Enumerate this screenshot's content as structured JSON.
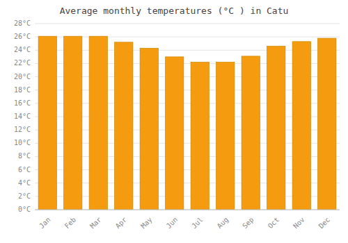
{
  "chart_data": {
    "type": "bar",
    "title": "Average monthly temperatures (°C ) in Catu",
    "categories": [
      "Jan",
      "Feb",
      "Mar",
      "Apr",
      "May",
      "Jun",
      "Jul",
      "Aug",
      "Sep",
      "Oct",
      "Nov",
      "Dec"
    ],
    "values": [
      26.1,
      26.1,
      26.1,
      25.2,
      24.3,
      23.0,
      22.2,
      22.2,
      23.1,
      24.6,
      25.3,
      25.8
    ],
    "color": "#F59B10",
    "ylim": [
      0,
      28
    ],
    "yticks": [
      {
        "value": 0,
        "label": "0°C"
      },
      {
        "value": 2,
        "label": "2°C"
      },
      {
        "value": 4,
        "label": "4°C"
      },
      {
        "value": 6,
        "label": "6°C"
      },
      {
        "value": 8,
        "label": "8°C"
      },
      {
        "value": 10,
        "label": "10°C"
      },
      {
        "value": 12,
        "label": "12°C"
      },
      {
        "value": 14,
        "label": "14°C"
      },
      {
        "value": 16,
        "label": "16°C"
      },
      {
        "value": 18,
        "label": "18°C"
      },
      {
        "value": 20,
        "label": "20°C"
      },
      {
        "value": 22,
        "label": "22°C"
      },
      {
        "value": 24,
        "label": "24°C"
      },
      {
        "value": 26,
        "label": "26°C"
      },
      {
        "value": 28,
        "label": "28°C"
      }
    ],
    "grid": true
  }
}
